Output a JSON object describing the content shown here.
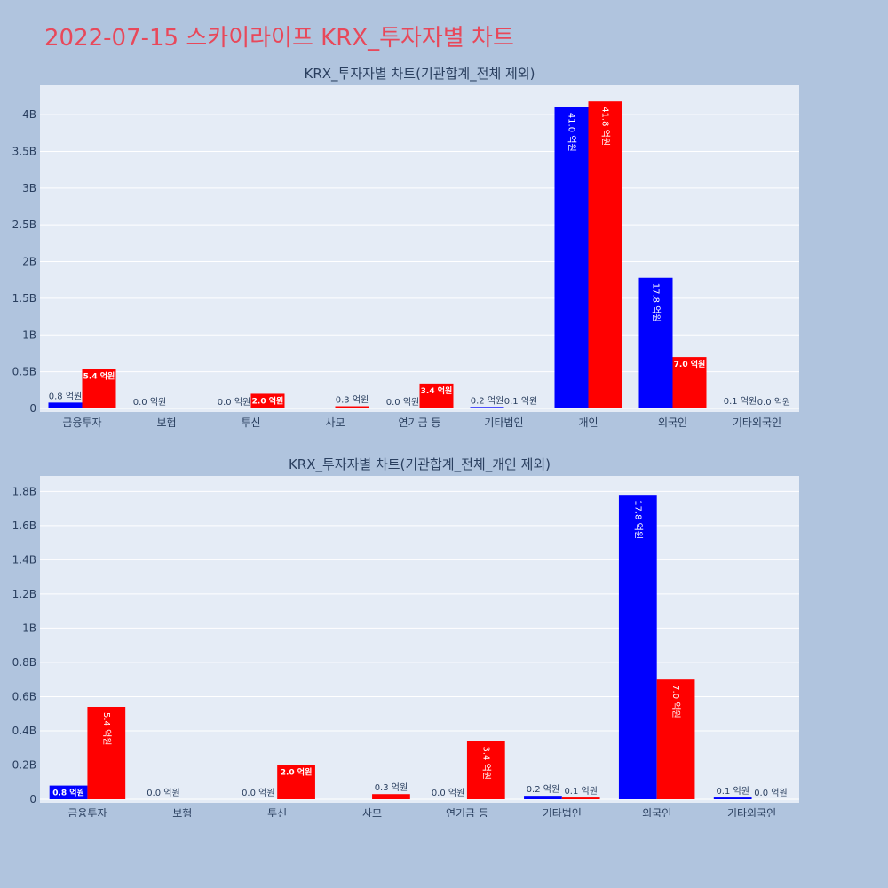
{
  "title": "2022-07-15 스카이라이프 KRX_투자자별 차트",
  "colors": {
    "buy": "#0000ff",
    "sell": "#ff0000",
    "plot_bg": "#e5ecf6",
    "page_bg": "#b0c4de",
    "title": "#e8485a"
  },
  "chart_data": [
    {
      "type": "bar",
      "title": "KRX_투자자별 차트(기관합계_전체 제외)",
      "categories": [
        "금융투자",
        "보험",
        "투신",
        "사모",
        "연기금 등",
        "기타법인",
        "개인",
        "외국인",
        "기타외국인"
      ],
      "series": [
        {
          "values": [
            80000000,
            0,
            0,
            0,
            0,
            20000000,
            4100000000,
            1780000000,
            10000000
          ],
          "labels": [
            "0.8 억원",
            "0.0 억원",
            "0.0 억원",
            "",
            "0.0 억원",
            "0.2 억원",
            "41.0 억원",
            "17.8 억원",
            "0.1 억원"
          ]
        },
        {
          "values": [
            540000000,
            0,
            200000000,
            30000000,
            340000000,
            10000000,
            4180000000,
            700000000,
            0
          ],
          "labels": [
            "5.4 억원",
            "",
            "2.0 억원",
            "0.3 억원",
            "3.4 억원",
            "0.1 억원",
            "41.8 억원",
            "7.0 억원",
            "0.0 억원"
          ]
        }
      ],
      "yticks": [
        "0",
        "0.5B",
        "1B",
        "1.5B",
        "2B",
        "2.5B",
        "3B",
        "3.5B",
        "4B"
      ],
      "ylim": [
        0,
        4400000000
      ]
    },
    {
      "type": "bar",
      "title": "KRX_투자자별 차트(기관합계_전체_개인 제외)",
      "categories": [
        "금융투자",
        "보험",
        "투신",
        "사모",
        "연기금 등",
        "기타법인",
        "외국인",
        "기타외국인"
      ],
      "series": [
        {
          "values": [
            80000000,
            0,
            0,
            0,
            0,
            20000000,
            1780000000,
            10000000
          ],
          "labels": [
            "0.8 억원",
            "0.0 억원",
            "0.0 억원",
            "",
            "0.0 억원",
            "0.2 억원",
            "17.8 억원",
            "0.1 억원"
          ]
        },
        {
          "values": [
            540000000,
            0,
            200000000,
            30000000,
            340000000,
            10000000,
            700000000,
            0
          ],
          "labels": [
            "5.4 억원",
            "",
            "2.0 억원",
            "0.3 억원",
            "3.4 억원",
            "0.1 억원",
            "7.0 억원",
            "0.0 억원"
          ]
        }
      ],
      "yticks": [
        "0",
        "0.2B",
        "0.4B",
        "0.6B",
        "0.8B",
        "1B",
        "1.2B",
        "1.4B",
        "1.6B",
        "1.8B"
      ],
      "ylim": [
        0,
        1890000000
      ]
    }
  ]
}
